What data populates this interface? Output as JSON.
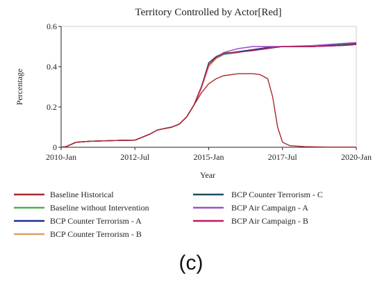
{
  "caption": "(c)",
  "chart_data": {
    "type": "line",
    "title": "Territory Controlled by Actor[Red]",
    "xlabel": "Year",
    "ylabel": "Percentage",
    "x_range": [
      "2010-01",
      "2020-01"
    ],
    "x_ticks": [
      {
        "label": "2010-Jan",
        "date": "2010-01"
      },
      {
        "label": "2012-Jul",
        "date": "2012-07"
      },
      {
        "label": "2015-Jan",
        "date": "2015-01"
      },
      {
        "label": "2017-Jul",
        "date": "2017-07"
      },
      {
        "label": "2020-Jan",
        "date": "2020-01"
      }
    ],
    "ylim": [
      0,
      0.6
    ],
    "y_ticks": [
      0,
      0.2,
      0.4,
      0.6
    ],
    "y_tick_labels": [
      "0",
      "0.2",
      "0.4",
      "0.6"
    ],
    "grid": false,
    "legend_position": "bottom",
    "series": [
      {
        "name": "Baseline Historical",
        "color": "#a52a2a",
        "points": [
          [
            "2010-01",
            0
          ],
          [
            "2010-03",
            0.003
          ],
          [
            "2010-07",
            0.025
          ],
          [
            "2011-01",
            0.03
          ],
          [
            "2011-07",
            0.032
          ],
          [
            "2012-01",
            0.034
          ],
          [
            "2012-07",
            0.035
          ],
          [
            "2012-10",
            0.05
          ],
          [
            "2013-01",
            0.065
          ],
          [
            "2013-04",
            0.085
          ],
          [
            "2013-07",
            0.093
          ],
          [
            "2013-10",
            0.1
          ],
          [
            "2014-01",
            0.115
          ],
          [
            "2014-04",
            0.15
          ],
          [
            "2014-07",
            0.21
          ],
          [
            "2014-10",
            0.27
          ],
          [
            "2015-01",
            0.315
          ],
          [
            "2015-04",
            0.34
          ],
          [
            "2015-07",
            0.355
          ],
          [
            "2016-01",
            0.365
          ],
          [
            "2016-07",
            0.365
          ],
          [
            "2016-10",
            0.36
          ],
          [
            "2017-01",
            0.34
          ],
          [
            "2017-03",
            0.25
          ],
          [
            "2017-05",
            0.1
          ],
          [
            "2017-07",
            0.025
          ],
          [
            "2017-10",
            0.008
          ],
          [
            "2018-04",
            0.003
          ],
          [
            "2019-01",
            0.001
          ],
          [
            "2020-01",
            0.001
          ]
        ]
      },
      {
        "name": "Baseline without Intervention",
        "color": "#4caf50",
        "points": [
          [
            "2010-01",
            0
          ],
          [
            "2010-03",
            0.003
          ],
          [
            "2010-07",
            0.025
          ],
          [
            "2011-01",
            0.03
          ],
          [
            "2011-07",
            0.032
          ],
          [
            "2012-01",
            0.034
          ],
          [
            "2012-07",
            0.035
          ],
          [
            "2012-10",
            0.05
          ],
          [
            "2013-01",
            0.065
          ],
          [
            "2013-04",
            0.085
          ],
          [
            "2013-07",
            0.093
          ],
          [
            "2013-10",
            0.1
          ],
          [
            "2014-01",
            0.115
          ],
          [
            "2014-04",
            0.15
          ],
          [
            "2014-07",
            0.21
          ],
          [
            "2014-10",
            0.29
          ],
          [
            "2015-01",
            0.4
          ],
          [
            "2015-04",
            0.44
          ],
          [
            "2015-07",
            0.46
          ],
          [
            "2016-01",
            0.47
          ],
          [
            "2016-07",
            0.485
          ],
          [
            "2017-01",
            0.495
          ],
          [
            "2017-07",
            0.5
          ],
          [
            "2018-07",
            0.5
          ],
          [
            "2019-07",
            0.505
          ],
          [
            "2020-01",
            0.51
          ]
        ]
      },
      {
        "name": "BCP Counter Terrorism - A",
        "color": "#1f2c8f",
        "points": [
          [
            "2010-01",
            0
          ],
          [
            "2010-03",
            0.003
          ],
          [
            "2010-07",
            0.025
          ],
          [
            "2011-01",
            0.03
          ],
          [
            "2011-07",
            0.032
          ],
          [
            "2012-01",
            0.034
          ],
          [
            "2012-07",
            0.035
          ],
          [
            "2012-10",
            0.05
          ],
          [
            "2013-01",
            0.065
          ],
          [
            "2013-04",
            0.085
          ],
          [
            "2013-07",
            0.093
          ],
          [
            "2013-10",
            0.1
          ],
          [
            "2014-01",
            0.115
          ],
          [
            "2014-04",
            0.15
          ],
          [
            "2014-07",
            0.21
          ],
          [
            "2014-10",
            0.3
          ],
          [
            "2015-01",
            0.41
          ],
          [
            "2015-04",
            0.445
          ],
          [
            "2015-07",
            0.465
          ],
          [
            "2016-01",
            0.475
          ],
          [
            "2016-07",
            0.485
          ],
          [
            "2017-01",
            0.495
          ],
          [
            "2017-07",
            0.5
          ],
          [
            "2018-07",
            0.5
          ],
          [
            "2019-07",
            0.505
          ],
          [
            "2020-01",
            0.51
          ]
        ]
      },
      {
        "name": "BCP Counter Terrorism - B",
        "color": "#d9a066",
        "points": [
          [
            "2010-01",
            0
          ],
          [
            "2010-03",
            0.003
          ],
          [
            "2010-07",
            0.025
          ],
          [
            "2011-01",
            0.03
          ],
          [
            "2011-07",
            0.032
          ],
          [
            "2012-01",
            0.034
          ],
          [
            "2012-07",
            0.035
          ],
          [
            "2012-10",
            0.05
          ],
          [
            "2013-01",
            0.065
          ],
          [
            "2013-04",
            0.085
          ],
          [
            "2013-07",
            0.093
          ],
          [
            "2013-10",
            0.1
          ],
          [
            "2014-01",
            0.115
          ],
          [
            "2014-04",
            0.15
          ],
          [
            "2014-07",
            0.21
          ],
          [
            "2014-10",
            0.29
          ],
          [
            "2015-01",
            0.4
          ],
          [
            "2015-04",
            0.44
          ],
          [
            "2015-07",
            0.47
          ],
          [
            "2016-01",
            0.49
          ],
          [
            "2016-07",
            0.5
          ],
          [
            "2017-01",
            0.5
          ],
          [
            "2017-07",
            0.5
          ],
          [
            "2018-07",
            0.5
          ],
          [
            "2019-07",
            0.51
          ],
          [
            "2020-01",
            0.515
          ]
        ]
      },
      {
        "name": "BCP Counter Terrorism - C",
        "color": "#1f4e5f",
        "points": [
          [
            "2010-01",
            0
          ],
          [
            "2010-03",
            0.003
          ],
          [
            "2010-07",
            0.025
          ],
          [
            "2011-01",
            0.03
          ],
          [
            "2011-07",
            0.032
          ],
          [
            "2012-01",
            0.034
          ],
          [
            "2012-07",
            0.035
          ],
          [
            "2012-10",
            0.05
          ],
          [
            "2013-01",
            0.065
          ],
          [
            "2013-04",
            0.085
          ],
          [
            "2013-07",
            0.093
          ],
          [
            "2013-10",
            0.1
          ],
          [
            "2014-01",
            0.115
          ],
          [
            "2014-04",
            0.15
          ],
          [
            "2014-07",
            0.21
          ],
          [
            "2014-10",
            0.3
          ],
          [
            "2015-01",
            0.42
          ],
          [
            "2015-04",
            0.45
          ],
          [
            "2015-07",
            0.468
          ],
          [
            "2016-01",
            0.472
          ],
          [
            "2016-07",
            0.48
          ],
          [
            "2017-01",
            0.49
          ],
          [
            "2017-07",
            0.5
          ],
          [
            "2018-07",
            0.5
          ],
          [
            "2019-07",
            0.51
          ],
          [
            "2020-01",
            0.515
          ]
        ]
      },
      {
        "name": "BCP Air Campaign - A",
        "color": "#9b4fd1",
        "points": [
          [
            "2010-01",
            0
          ],
          [
            "2010-03",
            0.003
          ],
          [
            "2010-07",
            0.025
          ],
          [
            "2011-01",
            0.03
          ],
          [
            "2011-07",
            0.032
          ],
          [
            "2012-01",
            0.034
          ],
          [
            "2012-07",
            0.035
          ],
          [
            "2012-10",
            0.05
          ],
          [
            "2013-01",
            0.065
          ],
          [
            "2013-04",
            0.085
          ],
          [
            "2013-07",
            0.093
          ],
          [
            "2013-10",
            0.1
          ],
          [
            "2014-01",
            0.115
          ],
          [
            "2014-04",
            0.15
          ],
          [
            "2014-07",
            0.21
          ],
          [
            "2014-10",
            0.3
          ],
          [
            "2015-01",
            0.41
          ],
          [
            "2015-04",
            0.445
          ],
          [
            "2015-07",
            0.47
          ],
          [
            "2016-01",
            0.49
          ],
          [
            "2016-07",
            0.5
          ],
          [
            "2017-01",
            0.5
          ],
          [
            "2017-07",
            0.5
          ],
          [
            "2018-07",
            0.505
          ],
          [
            "2019-07",
            0.515
          ],
          [
            "2020-01",
            0.52
          ]
        ]
      },
      {
        "name": "BCP Air Campaign - B",
        "color": "#c2185b",
        "points": [
          [
            "2010-01",
            0
          ],
          [
            "2010-03",
            0.003
          ],
          [
            "2010-07",
            0.025
          ],
          [
            "2011-01",
            0.03
          ],
          [
            "2011-07",
            0.032
          ],
          [
            "2012-01",
            0.034
          ],
          [
            "2012-07",
            0.035
          ],
          [
            "2012-10",
            0.05
          ],
          [
            "2013-01",
            0.065
          ],
          [
            "2013-04",
            0.085
          ],
          [
            "2013-07",
            0.093
          ],
          [
            "2013-10",
            0.1
          ],
          [
            "2014-01",
            0.115
          ],
          [
            "2014-04",
            0.15
          ],
          [
            "2014-07",
            0.21
          ],
          [
            "2014-10",
            0.3
          ],
          [
            "2015-01",
            0.41
          ],
          [
            "2015-04",
            0.445
          ],
          [
            "2015-07",
            0.465
          ],
          [
            "2016-01",
            0.472
          ],
          [
            "2016-07",
            0.48
          ],
          [
            "2017-01",
            0.492
          ],
          [
            "2017-07",
            0.5
          ],
          [
            "2018-07",
            0.5
          ],
          [
            "2019-07",
            0.505
          ],
          [
            "2020-01",
            0.51
          ]
        ]
      }
    ]
  }
}
